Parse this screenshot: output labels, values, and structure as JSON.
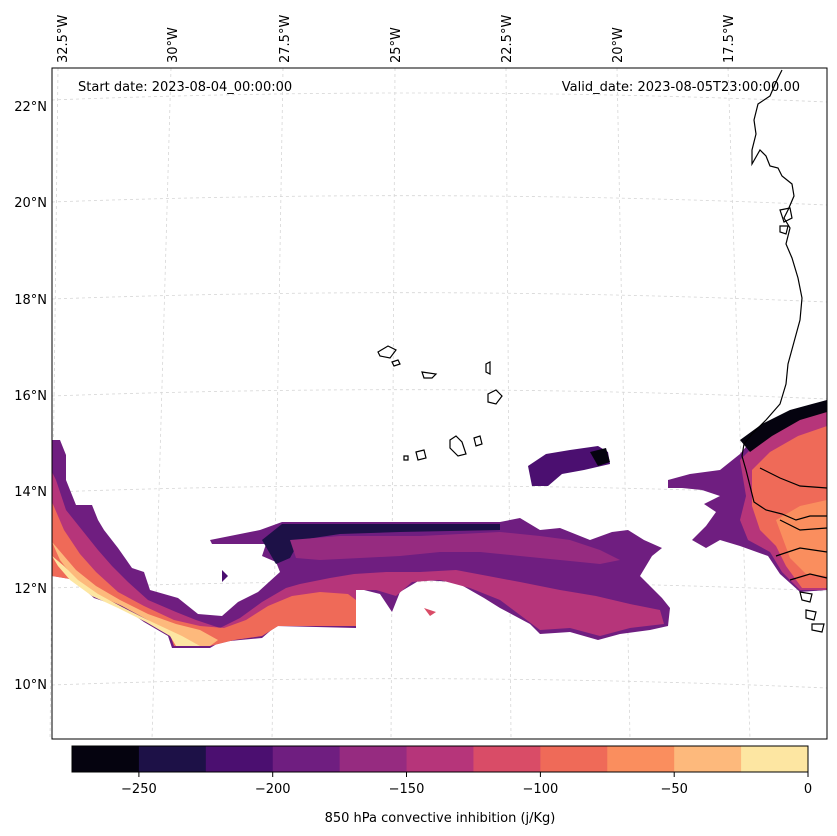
{
  "map": {
    "start_date": "Start date: 2023-08-04_00:00:00",
    "valid_date": "Valid_date: 2023-08-05T23:00:00.00",
    "lon_labels": [
      "32.5°W",
      "30°W",
      "27.5°W",
      "25°W",
      "22.5°W",
      "20°W",
      "17.5°W"
    ],
    "lat_labels": [
      "22°N",
      "20°N",
      "18°N",
      "16°N",
      "14°N",
      "12°N",
      "10°N"
    ],
    "gridlines": true
  },
  "colorbar": {
    "label": "850 hPa convective inhibition (j/Kg)",
    "ticks": [
      "−250",
      "−200",
      "−150",
      "−100",
      "−50",
      "0"
    ],
    "levels": [
      -275,
      -250,
      -225,
      -200,
      -175,
      -150,
      -125,
      -100,
      -75,
      -50,
      -25,
      0
    ],
    "colors": [
      "#05030f",
      "#1d1147",
      "#4b0f70",
      "#6f1e80",
      "#962b80",
      "#b6357a",
      "#d94c67",
      "#ef6a58",
      "#fa8e5e",
      "#fdb97c",
      "#fde6a2"
    ]
  },
  "colors": {
    "coastline": "#000000",
    "gridline": "#cccccc"
  }
}
